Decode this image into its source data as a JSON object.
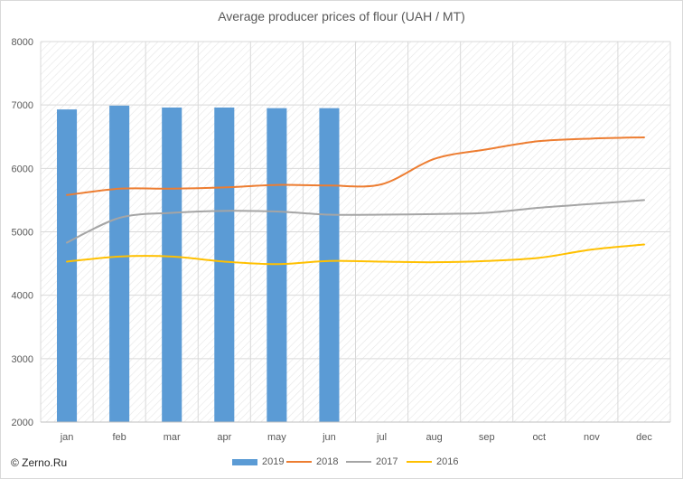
{
  "chart_data": {
    "type": "bar+line",
    "title": "Average producer prices of flour (UAH / MT)",
    "categories": [
      "jan",
      "feb",
      "mar",
      "apr",
      "may",
      "jun",
      "jul",
      "aug",
      "sep",
      "oct",
      "nov",
      "dec"
    ],
    "ylim": [
      2000,
      8000
    ],
    "yticks": [
      "2000",
      "3000",
      "4000",
      "5000",
      "6000",
      "7000",
      "8000"
    ],
    "grid": true,
    "legend_position": "bottom",
    "series": [
      {
        "name": "2019",
        "kind": "bar",
        "color": "#5b9bd5",
        "values": [
          6930,
          6990,
          6960,
          6960,
          6950,
          6950,
          null,
          null,
          null,
          null,
          null,
          null
        ]
      },
      {
        "name": "2018",
        "kind": "line",
        "color": "#ed7d31",
        "values": [
          5580,
          5680,
          5680,
          5700,
          5740,
          5730,
          5750,
          6150,
          6300,
          6430,
          6470,
          6490
        ]
      },
      {
        "name": "2017",
        "kind": "line",
        "color": "#a5a5a5",
        "values": [
          4830,
          5220,
          5300,
          5330,
          5320,
          5270,
          5270,
          5280,
          5300,
          5380,
          5440,
          5500
        ]
      },
      {
        "name": "2016",
        "kind": "line",
        "color": "#ffc000",
        "values": [
          4530,
          4610,
          4610,
          4530,
          4490,
          4540,
          4530,
          4520,
          4540,
          4590,
          4720,
          4800
        ]
      }
    ]
  },
  "copyright": "© Zerno.Ru"
}
